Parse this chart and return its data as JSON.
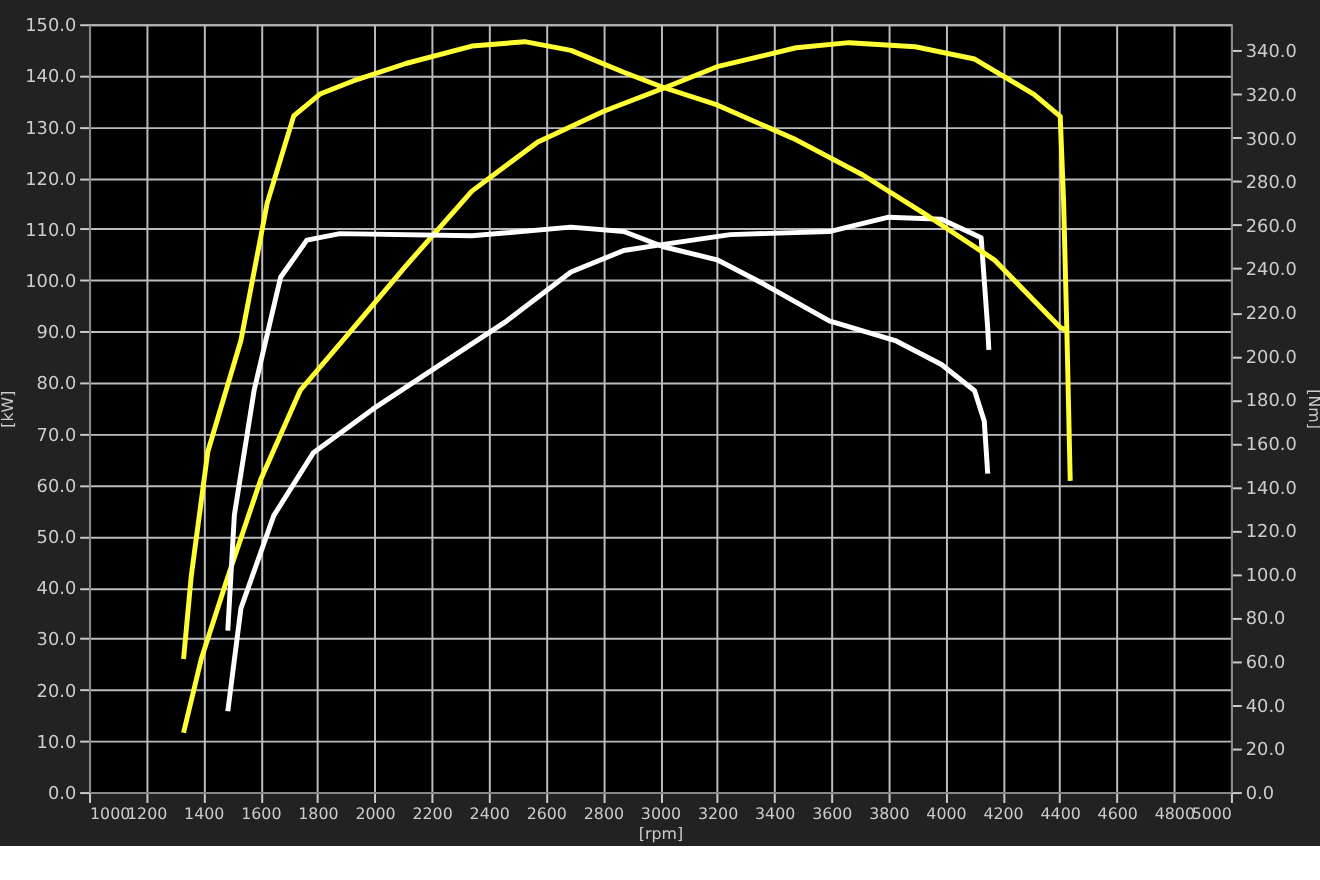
{
  "chart_data": {
    "type": "line",
    "xlabel": "[rpm]",
    "ylabel": "[kW]",
    "y2label": "[Nm]",
    "xlim": [
      1000,
      5000
    ],
    "xticks": [
      1000,
      1200,
      1400,
      1600,
      1800,
      2000,
      2200,
      2400,
      2600,
      2800,
      3000,
      3200,
      3400,
      3600,
      3800,
      4000,
      4200,
      4400,
      4600,
      4800,
      5000
    ],
    "ylim": [
      0,
      150
    ],
    "yticks": [
      {
        "value": 0,
        "label": "0.0"
      },
      {
        "value": 10,
        "label": "10.0"
      },
      {
        "value": 20,
        "label": "20.0"
      },
      {
        "value": 30,
        "label": "30.0"
      },
      {
        "value": 40,
        "label": "40.0"
      },
      {
        "value": 50,
        "label": "50.0"
      },
      {
        "value": 60,
        "label": "60.0"
      },
      {
        "value": 70,
        "label": "70.0"
      },
      {
        "value": 80,
        "label": "80.0"
      },
      {
        "value": 90,
        "label": "90.0"
      },
      {
        "value": 100,
        "label": "100.0"
      },
      {
        "value": 110,
        "label": "110.0"
      },
      {
        "value": 120,
        "label": "120.0"
      },
      {
        "value": 130,
        "label": "130.0"
      },
      {
        "value": 140,
        "label": "140.0"
      },
      {
        "value": 150,
        "label": "150.0"
      }
    ],
    "y2lim": [
      0,
      352
    ],
    "y2ticks": [
      {
        "value": 0,
        "label": "0.0"
      },
      {
        "value": 20,
        "label": "20.0"
      },
      {
        "value": 40,
        "label": "40.0"
      },
      {
        "value": 60,
        "label": "60.0"
      },
      {
        "value": 80,
        "label": "80.0"
      },
      {
        "value": 100,
        "label": "100.0"
      },
      {
        "value": 120,
        "label": "120.0"
      },
      {
        "value": 140,
        "label": "140.0"
      },
      {
        "value": 160,
        "label": "160.0"
      },
      {
        "value": 180,
        "label": "180.0"
      },
      {
        "value": 200,
        "label": "200.0"
      },
      {
        "value": 220,
        "label": "220.0"
      },
      {
        "value": 240,
        "label": "240.0"
      },
      {
        "value": 260,
        "label": "260.0"
      },
      {
        "value": 280,
        "label": "280.0"
      },
      {
        "value": 300,
        "label": "300.0"
      },
      {
        "value": 320,
        "label": "320.0"
      },
      {
        "value": 340,
        "label": "340.0"
      }
    ],
    "grid": true,
    "marker": "none",
    "line_style": "solid",
    "series": [
      {
        "color": "#ffff33",
        "axis": "y",
        "x": [
          1331,
          1393,
          1486,
          1601,
          1740,
          1925,
          2110,
          2341,
          2572,
          2803,
          3012,
          3200,
          3477,
          3662,
          3894,
          4102,
          4310,
          4402,
          4414,
          4425,
          4437
        ],
        "values": [
          11.6,
          26,
          42,
          61,
          78.5,
          90.6,
          102.8,
          117.4,
          127,
          133,
          137.5,
          141.7,
          145.4,
          146.4,
          145.6,
          143.2,
          136.3,
          132,
          115,
          90.6,
          60.8
        ]
      },
      {
        "color": "#ffff33",
        "axis": "y2",
        "x": [
          1331,
          1358,
          1416,
          1532,
          1624,
          1717,
          1809,
          1925,
          2110,
          2341,
          2526,
          2688,
          2873,
          3012,
          3200,
          3477,
          3709,
          3940,
          4171,
          4402,
          4420
        ],
        "values": [
          61,
          99,
          156,
          207,
          270,
          310,
          320,
          326,
          334,
          342,
          344,
          340,
          330,
          323,
          315,
          299,
          283,
          264,
          244,
          213,
          212
        ]
      },
      {
        "color": "#ffffff",
        "axis": "y",
        "x": [
          1486,
          1532,
          1647,
          1786,
          1994,
          2225,
          2457,
          2688,
          2873,
          3012,
          3246,
          3593,
          3801,
          3986,
          4125,
          4148,
          4152
        ],
        "values": [
          15.8,
          35.9,
          54,
          66.3,
          74.8,
          83.3,
          91.8,
          101.6,
          105.8,
          107,
          108.9,
          109.5,
          112.3,
          111.9,
          108.3,
          90.6,
          86.4
        ]
      },
      {
        "color": "#ffffff",
        "axis": "y2",
        "x": [
          1486,
          1509,
          1578,
          1671,
          1763,
          1879,
          2341,
          2688,
          2873,
          3012,
          3200,
          3362,
          3593,
          3824,
          3986,
          4102,
          4136,
          4148
        ],
        "values": [
          74,
          127,
          184,
          236,
          253,
          256,
          255,
          259,
          257,
          250,
          244,
          233,
          216,
          207,
          196,
          184,
          170,
          146
        ]
      }
    ]
  }
}
